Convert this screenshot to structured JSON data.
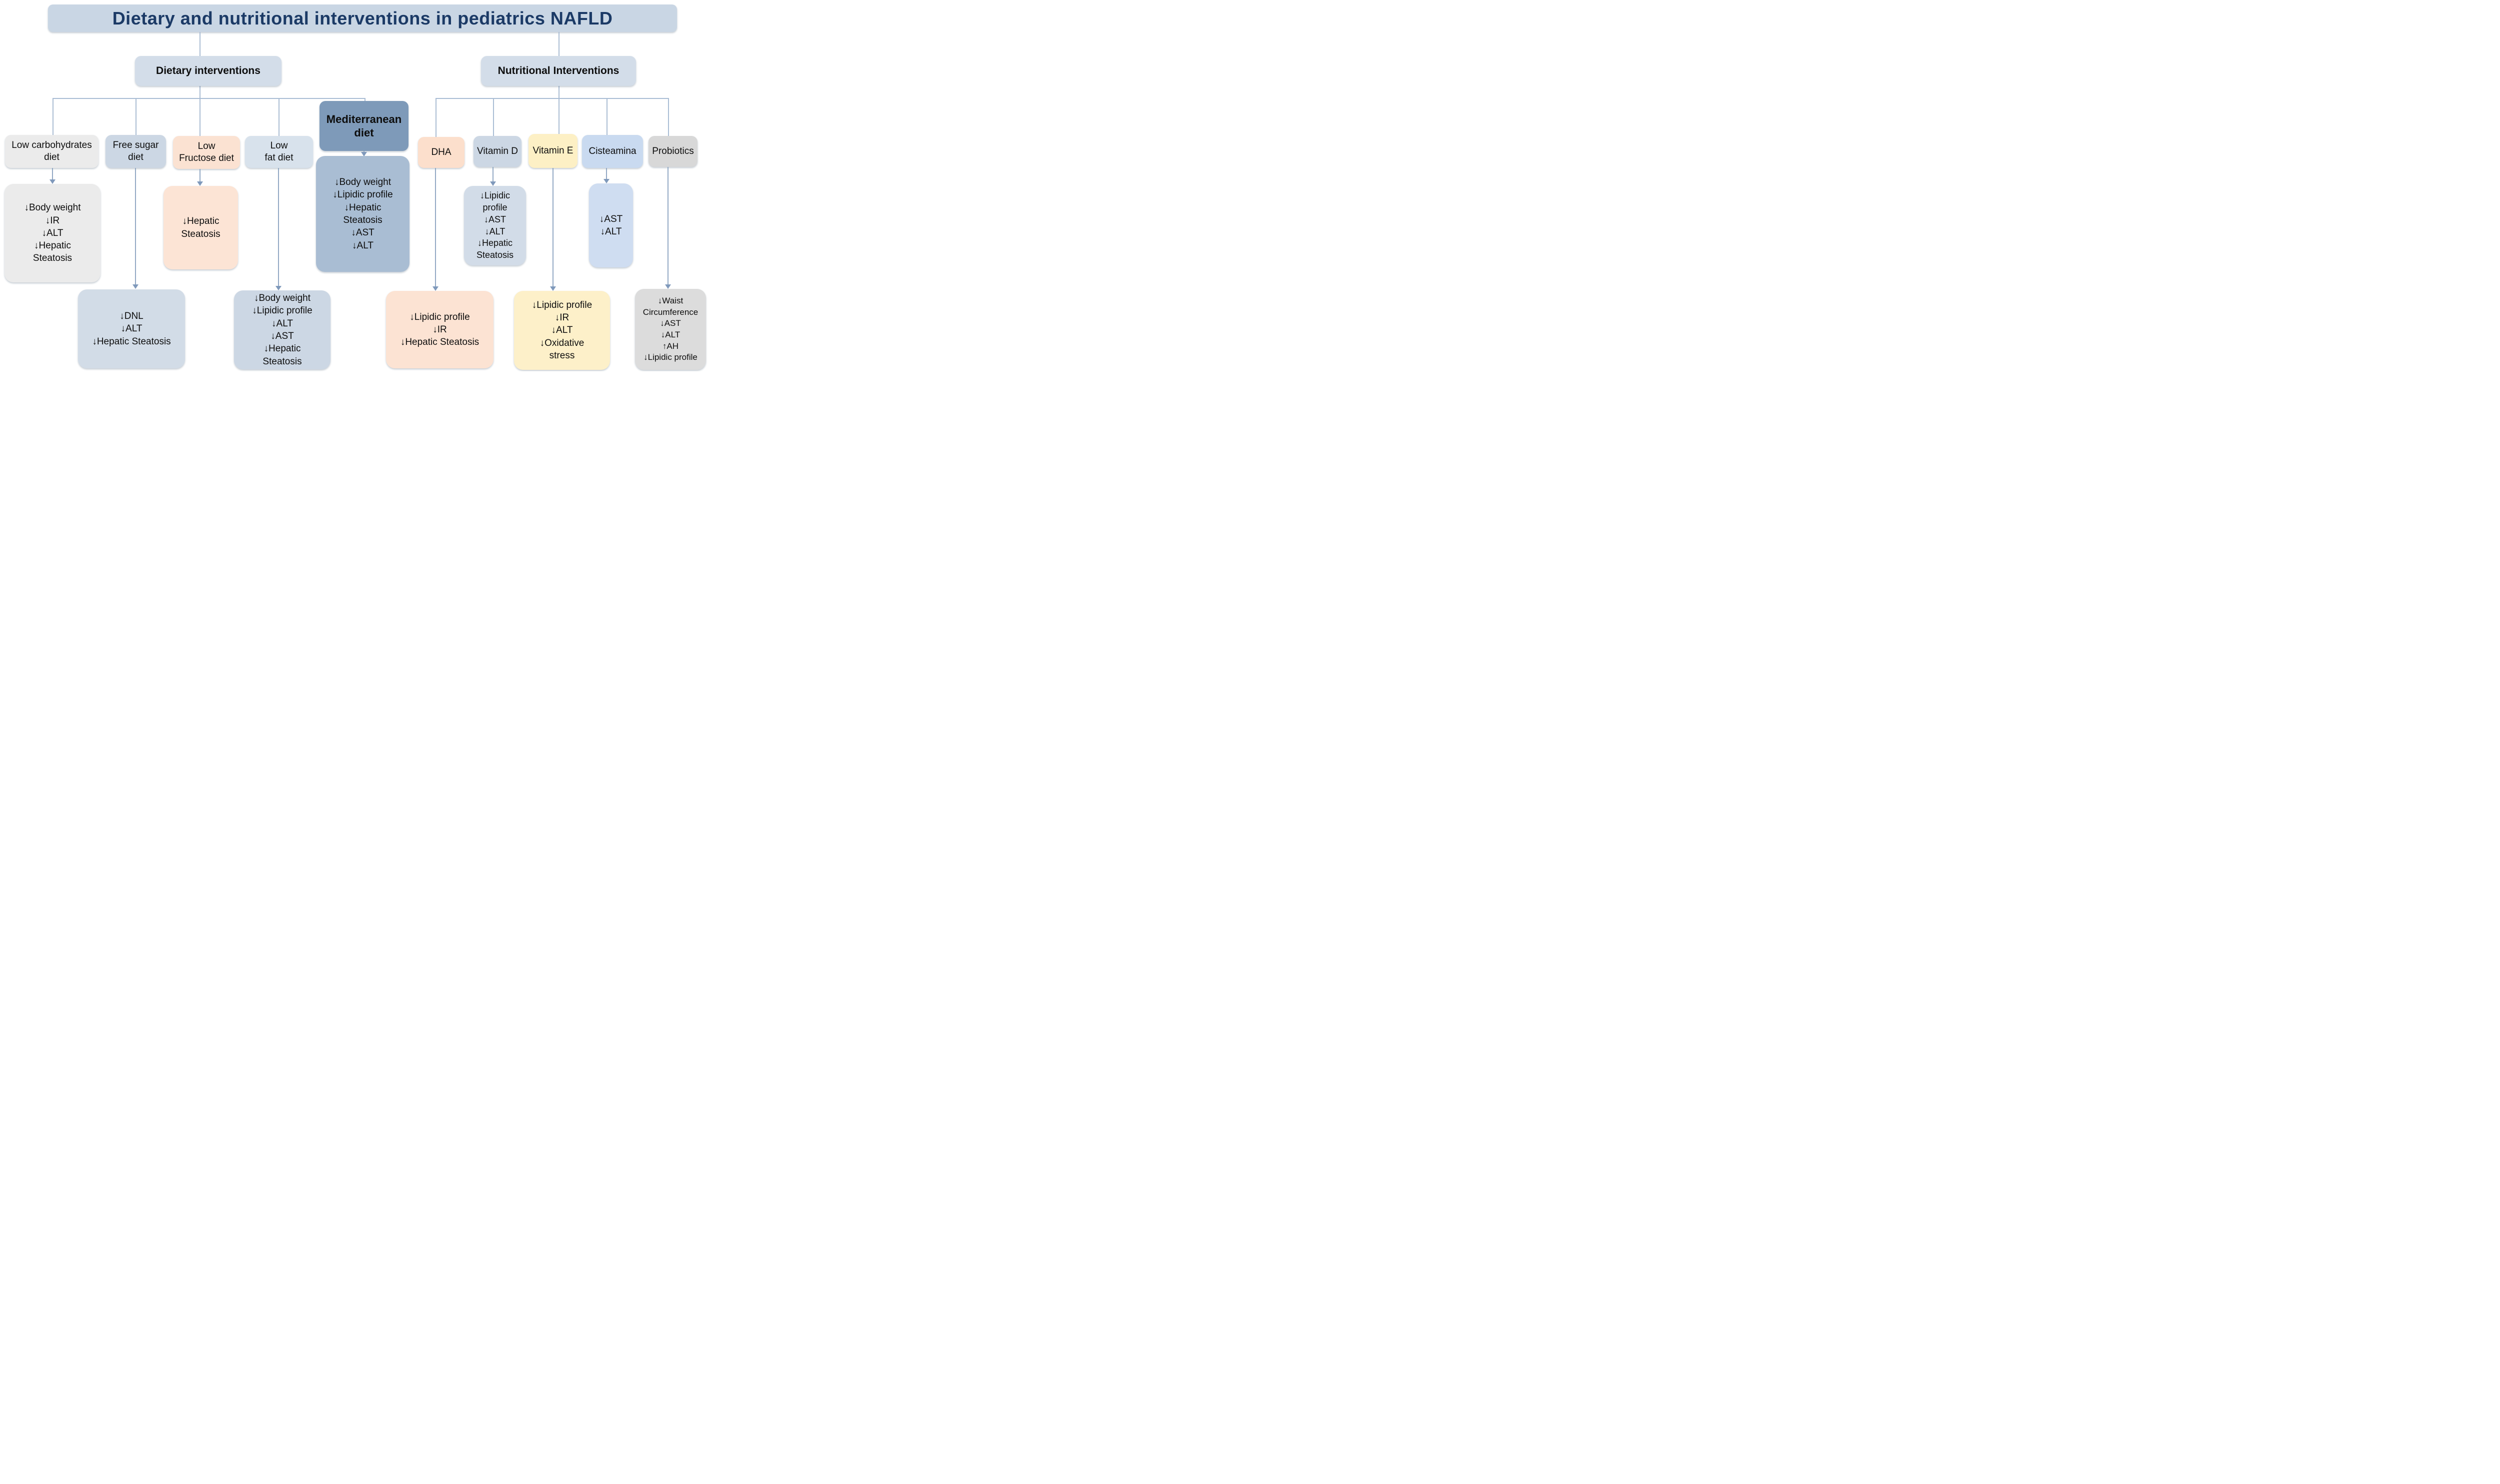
{
  "title": {
    "text": "Dietary and nutritional interventions in pediatrics NAFLD"
  },
  "branches": {
    "dietary": {
      "label": "Dietary interventions"
    },
    "nutritional": {
      "label": "Nutritional Interventions"
    }
  },
  "nodes": {
    "low_carb": {
      "label": "Low carbohydrates\ndiet",
      "outcome": "↓Body weight\n↓IR\n↓ALT\n↓Hepatic\nSteatosis"
    },
    "free_sugar": {
      "label": "Free sugar\ndiet",
      "outcome": "↓DNL\n↓ALT\n↓Hepatic Steatosis"
    },
    "low_fructose": {
      "label": "Low\nFructose diet",
      "outcome": "↓Hepatic\nSteatosis"
    },
    "low_fat": {
      "label": "Low\nfat diet",
      "outcome": "↓Body weight\n↓Lipidic profile\n↓ALT\n↓AST\n↓Hepatic\nSteatosis"
    },
    "mediterranean": {
      "label": "Mediterranean\ndiet",
      "outcome": "↓Body weight\n↓Lipidic profile\n↓Hepatic\nSteatosis\n↓AST\n↓ALT"
    },
    "dha": {
      "label": "DHA",
      "outcome": "↓Lipidic profile\n↓IR\n↓Hepatic Steatosis"
    },
    "vitamin_d": {
      "label": "Vitamin D",
      "outcome": "↓Lipidic\nprofile\n↓AST\n↓ALT\n↓Hepatic\nSteatosis"
    },
    "vitamin_e": {
      "label": "Vitamin E",
      "outcome": "↓Lipidic profile\n↓IR\n↓ALT\n↓Oxidative\nstress"
    },
    "cisteamina": {
      "label": "Cisteamina",
      "outcome": "↓AST\n↓ALT"
    },
    "probiotics": {
      "label": "Probiotics",
      "outcome": "↓Waist\nCircumference\n↓AST\n↓ALT\n↑AH\n↓Lipidic profile"
    }
  },
  "colors": {
    "title_bg": "#c9d6e4",
    "title_text": "#1b3a66",
    "branch_bg": "#d3dde9",
    "connector_line": "#aabdd4",
    "arrowhead": "#7f99bb",
    "low_carb": "#ebebeb",
    "free_sugar": "#ccd7e4",
    "low_fructose": "#fbe2d2",
    "low_fat": "#d8e2ec",
    "mediterranean": "#7e9ab9",
    "mediterranean_outcome": "#a9bdd3",
    "dha": "#fcdfcc",
    "vitamin_d": "#ccd7e4",
    "vitamin_e": "#fdf0c5",
    "cisteamina": "#c9daf0",
    "probiotics": "#d8d8d8"
  }
}
